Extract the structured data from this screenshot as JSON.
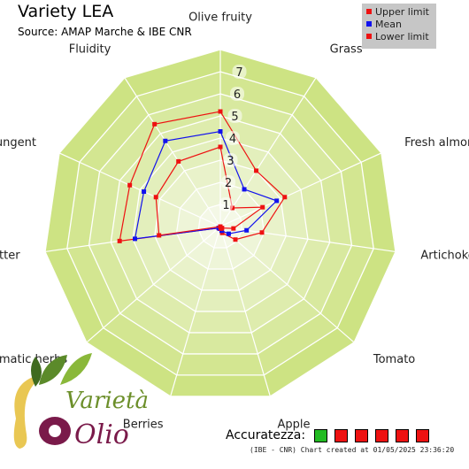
{
  "header": {
    "title": "Variety LEA",
    "subtitle": "Source: AMAP Marche & IBE CNR"
  },
  "legend": [
    {
      "label": "Upper limit",
      "color": "#ee1111"
    },
    {
      "label": "Mean",
      "color": "#1111ee"
    },
    {
      "label": "Lower limit",
      "color": "#ee1111"
    }
  ],
  "colors": {
    "background": "#ffffff",
    "polygon_outer": "#cde383",
    "polygon_inner": "#f4f8e6",
    "grid_line": "#ffffff",
    "upper": "#ee1111",
    "mean": "#1111ee",
    "lower": "#ee1111"
  },
  "chart_data": {
    "type": "radar",
    "title": "Variety LEA",
    "subtitle": "Source: AMAP Marche & IBE CNR",
    "axes": [
      "Olive fruity",
      "Grass",
      "Fresh almond",
      "Artichoke",
      "Tomato",
      "Apple",
      "Berries",
      "Aromatic herbs",
      "Bitter",
      "Pungent",
      "Fluidity"
    ],
    "rlim": [
      0,
      8
    ],
    "ticks": [
      "1",
      "2",
      "3",
      "4",
      "5",
      "6",
      "7"
    ],
    "tick_values": [
      1,
      2,
      3,
      4,
      5,
      6,
      7
    ],
    "series": [
      {
        "name": "Upper limit",
        "values": [
          5.2,
          3.0,
          3.2,
          1.9,
          0.9,
          0.3,
          0.1,
          0.1,
          4.6,
          4.5,
          5.5
        ]
      },
      {
        "name": "Mean",
        "values": [
          4.3,
          2.0,
          2.8,
          1.2,
          0.5,
          0.2,
          0.1,
          0.1,
          3.9,
          3.8,
          4.6
        ]
      },
      {
        "name": "Lower limit",
        "values": [
          3.6,
          1.0,
          2.1,
          0.6,
          0.1,
          0.1,
          0.0,
          0.0,
          2.8,
          3.2,
          3.5
        ]
      }
    ]
  },
  "accuracy": {
    "label": "Accuratezza:",
    "boxes": [
      "#22bb22",
      "#ee1111",
      "#ee1111",
      "#ee1111",
      "#ee1111",
      "#ee1111"
    ]
  },
  "footer": "(IBE - CNR) Chart created at 01/05/2025 23:36:20",
  "logo": {
    "text_top": "Varietà",
    "text_bottom": "Olio"
  }
}
